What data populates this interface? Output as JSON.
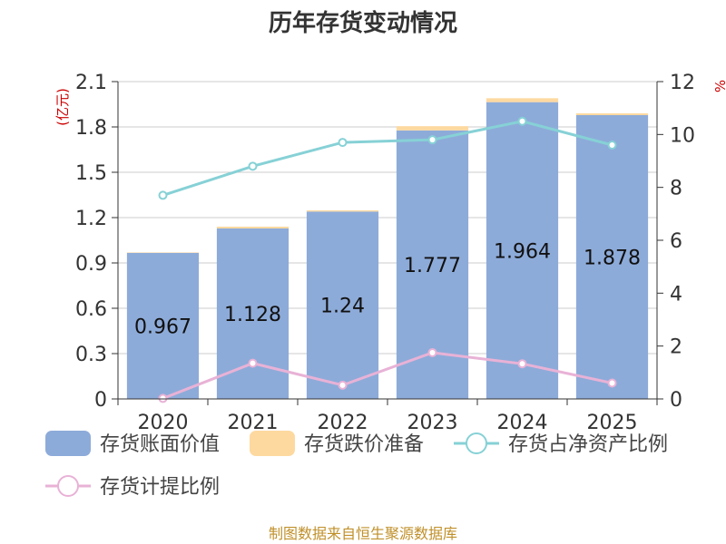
{
  "chart_data": {
    "type": "bar",
    "title": "历年存货变动情况",
    "categories": [
      "2020",
      "2021",
      "2022",
      "2023",
      "2024",
      "2025"
    ],
    "y_left": {
      "unit": "(亿元)",
      "range": [
        0,
        2.1
      ],
      "ticks": [
        "0",
        "0.3",
        "0.6",
        "0.9",
        "1.2",
        "1.5",
        "1.8",
        "2.1"
      ]
    },
    "y_right": {
      "unit": "%",
      "range": [
        0,
        12
      ],
      "ticks": [
        "0",
        "2",
        "4",
        "6",
        "8",
        "10",
        "12"
      ]
    },
    "series": [
      {
        "name": "存货账面价值",
        "type": "bar",
        "axis": "left",
        "color": "#8dabd9",
        "values": [
          0.967,
          1.128,
          1.24,
          1.777,
          1.964,
          1.878
        ],
        "labels": [
          "0.967",
          "1.128",
          "1.24",
          "1.777",
          "1.964",
          "1.878"
        ]
      },
      {
        "name": "存货跌价准备",
        "type": "bar",
        "axis": "left",
        "stacked": true,
        "color": "#fdd9a0",
        "values": [
          0.003,
          0.012,
          0.008,
          0.028,
          0.026,
          0.012
        ]
      },
      {
        "name": "存货占净资产比例",
        "type": "line",
        "axis": "right",
        "color": "#86d1d6",
        "values": [
          7.7,
          8.8,
          9.7,
          9.8,
          10.5,
          9.6
        ]
      },
      {
        "name": "存货计提比例",
        "type": "line",
        "axis": "right",
        "color": "#e8b2d6",
        "values": [
          0.02,
          1.35,
          0.52,
          1.75,
          1.33,
          0.6
        ]
      }
    ],
    "grid": true,
    "legend": "bottom"
  },
  "source": "制图数据来自恒生聚源数据库"
}
